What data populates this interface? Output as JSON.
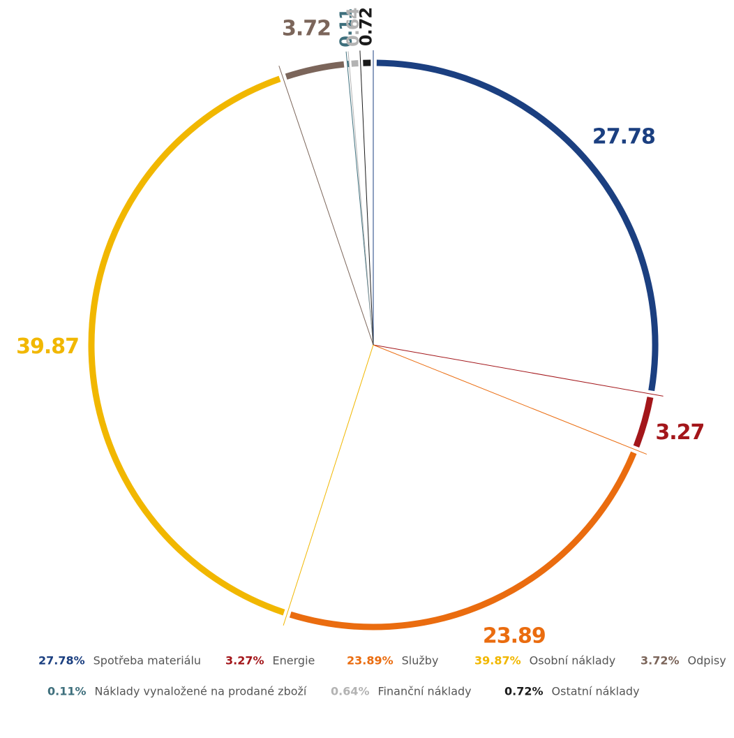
{
  "chart_data": {
    "type": "pie",
    "categories": [
      "Spotřeba materiálu",
      "Energie",
      "Služby",
      "Osobní náklady",
      "Odpisy",
      "Náklady vynaložené na prodané zboží",
      "Finanční náklady",
      "Ostatní náklady"
    ],
    "values": [
      27.78,
      3.27,
      23.89,
      39.87,
      3.72,
      0.11,
      0.64,
      0.72
    ],
    "value_labels": [
      "27.78%",
      "3.27%",
      "23.89%",
      "39.87%",
      "3.72%",
      "0.11%",
      "0.64%",
      "0.72%"
    ],
    "colors": [
      "#1b3f80",
      "#a3161a",
      "#ea6c0f",
      "#f1b700",
      "#7b655a",
      "#3e6f7c",
      "#b3b3b3",
      "#1a1a1a"
    ]
  }
}
